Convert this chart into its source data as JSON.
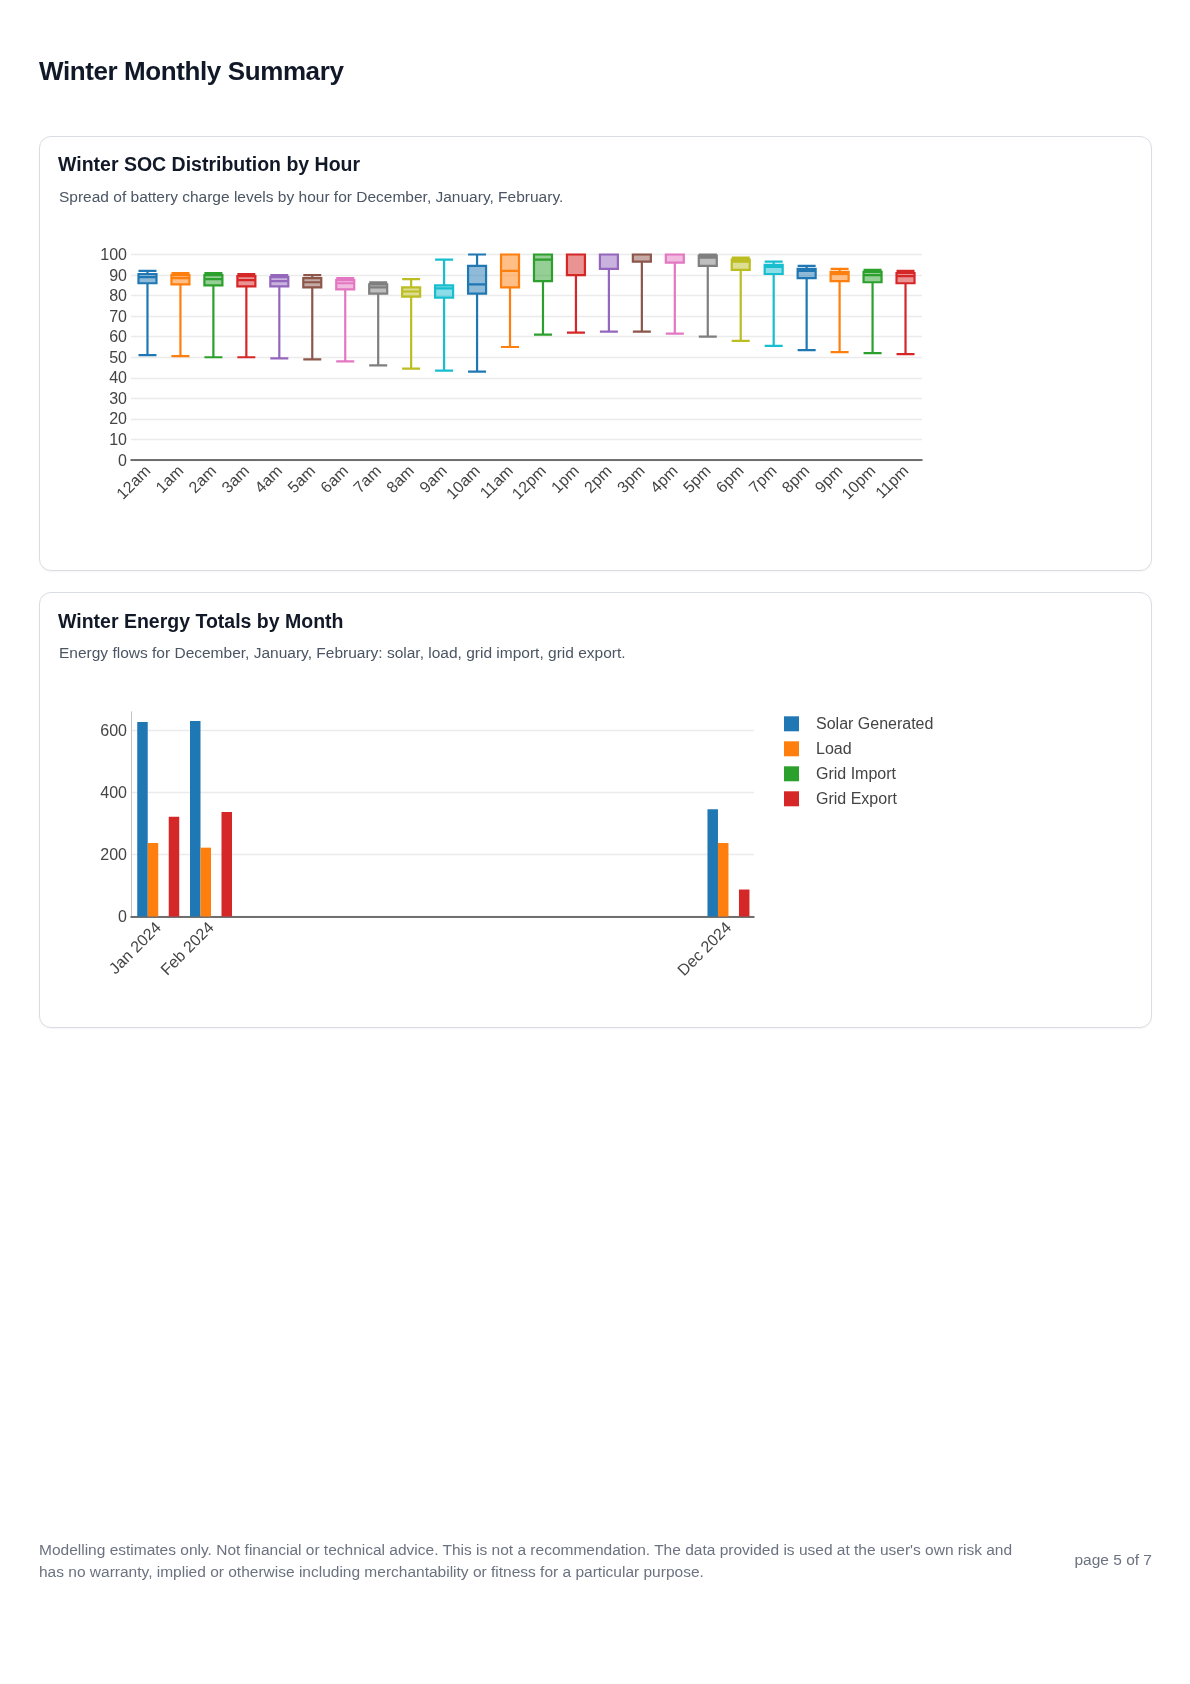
{
  "chart_data": [
    {
      "type": "box",
      "title": "Winter SOC Distribution by Hour",
      "subtitle": "Spread of battery charge levels by hour for December, January, February.",
      "annotations": [
        "Winter Monthly Summary"
      ],
      "categories": [
        "12am",
        "1am",
        "2am",
        "3am",
        "4am",
        "5am",
        "6am",
        "7am",
        "8am",
        "9am",
        "10am",
        "11am",
        "12pm",
        "1pm",
        "2pm",
        "3pm",
        "4pm",
        "5pm",
        "6pm",
        "7pm",
        "8pm",
        "9pm",
        "10pm",
        "11pm"
      ],
      "boxes": [
        {
          "low": 51,
          "q1": 86,
          "median": 89,
          "q3": 90.5,
          "high": 92
        },
        {
          "low": 50.5,
          "q1": 85.5,
          "median": 88.5,
          "q3": 90,
          "high": 91
        },
        {
          "low": 50,
          "q1": 85,
          "median": 88,
          "q3": 90,
          "high": 91
        },
        {
          "low": 50,
          "q1": 84.5,
          "median": 87.5,
          "q3": 89.5,
          "high": 90.5
        },
        {
          "low": 49.5,
          "q1": 84.5,
          "median": 87,
          "q3": 89,
          "high": 90
        },
        {
          "low": 49,
          "q1": 84,
          "median": 86.5,
          "q3": 88.5,
          "high": 90
        },
        {
          "low": 48,
          "q1": 83,
          "median": 86,
          "q3": 87.5,
          "high": 88.5
        },
        {
          "low": 46,
          "q1": 81,
          "median": 84,
          "q3": 85.5,
          "high": 86.5
        },
        {
          "low": 44.5,
          "q1": 79.5,
          "median": 82,
          "q3": 84,
          "high": 88
        },
        {
          "low": 43.5,
          "q1": 79,
          "median": 83.5,
          "q3": 85,
          "high": 97.5
        },
        {
          "low": 43,
          "q1": 81,
          "median": 85.5,
          "q3": 94.5,
          "high": 100
        },
        {
          "low": 55,
          "q1": 84,
          "median": 92,
          "q3": 100,
          "high": 100
        },
        {
          "low": 61,
          "q1": 87,
          "median": 97.5,
          "q3": 100,
          "high": 100
        },
        {
          "low": 62,
          "q1": 90,
          "median": 100,
          "q3": 100,
          "high": 100
        },
        {
          "low": 62.5,
          "q1": 93,
          "median": 100,
          "q3": 100,
          "high": 100
        },
        {
          "low": 62.5,
          "q1": 96.5,
          "median": 100,
          "q3": 100,
          "high": 100
        },
        {
          "low": 61.5,
          "q1": 96,
          "median": 100,
          "q3": 100,
          "high": 100
        },
        {
          "low": 60,
          "q1": 94.5,
          "median": 98.5,
          "q3": 99.5,
          "high": 100
        },
        {
          "low": 58,
          "q1": 92.5,
          "median": 96.5,
          "q3": 97.5,
          "high": 98.5
        },
        {
          "low": 55.5,
          "q1": 90.5,
          "median": 94,
          "q3": 95,
          "high": 96.5
        },
        {
          "low": 53.5,
          "q1": 88.5,
          "median": 92,
          "q3": 93,
          "high": 94.5
        },
        {
          "low": 52.5,
          "q1": 87,
          "median": 90.5,
          "q3": 91.5,
          "high": 93
        },
        {
          "low": 52,
          "q1": 86.5,
          "median": 90,
          "q3": 91.5,
          "high": 92.5
        },
        {
          "low": 51.5,
          "q1": 86,
          "median": 89.5,
          "q3": 91,
          "high": 92
        }
      ],
      "colors": [
        "#1f77b4",
        "#ff7f0e",
        "#2ca02c",
        "#d62728",
        "#9467bd",
        "#8c564b",
        "#e377c2",
        "#7f7f7f",
        "#bcbd22",
        "#17becf",
        "#1f77b4",
        "#ff7f0e",
        "#2ca02c",
        "#d62728",
        "#9467bd",
        "#8c564b",
        "#e377c2",
        "#7f7f7f",
        "#bcbd22",
        "#17becf",
        "#1f77b4",
        "#ff7f0e",
        "#2ca02c",
        "#d62728"
      ],
      "ylim": [
        0,
        100
      ],
      "yticks": [
        0,
        10,
        20,
        30,
        40,
        50,
        60,
        70,
        80,
        90,
        100
      ],
      "grid": "y"
    },
    {
      "type": "bar",
      "title": "Winter Energy Totals by Month",
      "subtitle": "Energy flows for December, January, February: solar, load, grid import, grid export.",
      "annotations": [
        "Modelling estimates only. Not financial or technical advice. This is not a recommendation. The data provided is used at the user's own risk and has no warranty, implied or otherwise including merchantability or fitness for a particular purpose.",
        "page 5 of 7"
      ],
      "x": [
        "2024-01",
        "2024-02",
        "2024-12"
      ],
      "xlim": [
        "2023-12-16",
        "2024-12-16"
      ],
      "xticks": [
        {
          "value": "2024-01",
          "label": "Jan 2024"
        },
        {
          "value": "2024-02",
          "label": "Feb 2024"
        },
        {
          "value": "2024-12",
          "label": "Dec 2024"
        }
      ],
      "series": [
        {
          "name": "Solar Generated",
          "color": "#1f77b4",
          "values": [
            627,
            630,
            346
          ]
        },
        {
          "name": "Load",
          "color": "#ff7f0e",
          "values": [
            237,
            222,
            237
          ]
        },
        {
          "name": "Grid Import",
          "color": "#2ca02c",
          "values": [
            0,
            0,
            0
          ]
        },
        {
          "name": "Grid Export",
          "color": "#d62728",
          "values": [
            322,
            337,
            87
          ]
        }
      ],
      "ylim": [
        0,
        660
      ],
      "yticks": [
        0,
        200,
        400,
        600
      ],
      "grid": "y",
      "legend": "top right"
    }
  ]
}
